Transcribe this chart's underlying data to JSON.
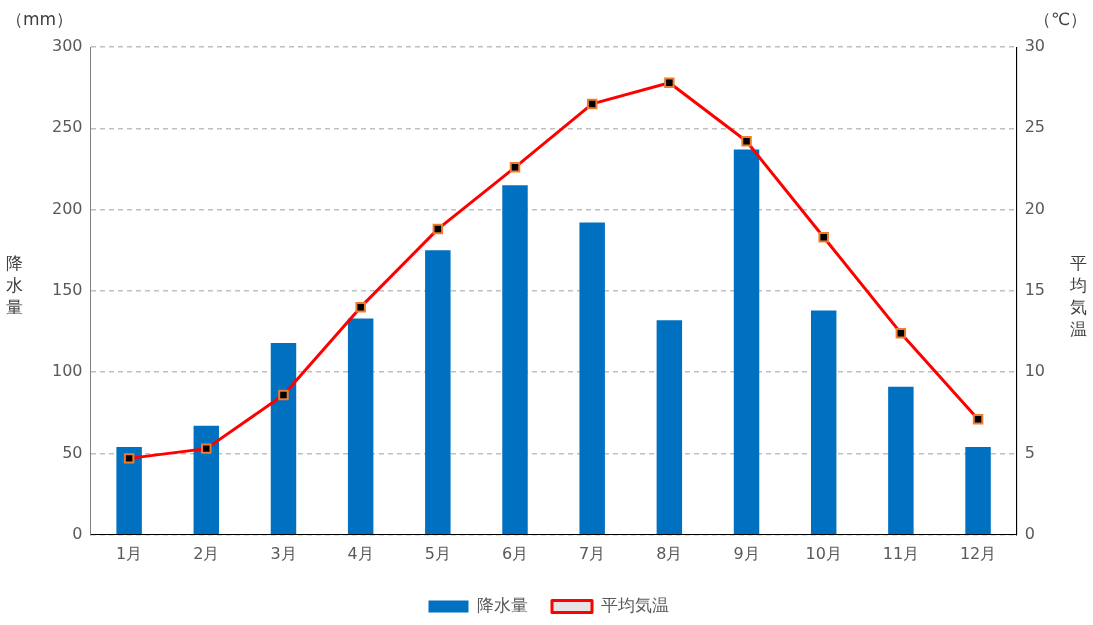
{
  "chart_data": {
    "type": "bar",
    "categories": [
      "1月",
      "2月",
      "3月",
      "4月",
      "5月",
      "6月",
      "7月",
      "8月",
      "9月",
      "10月",
      "11月",
      "12月"
    ],
    "series": [
      {
        "name": "降水量",
        "color": "#0070c0",
        "values": [
          54,
          67,
          118,
          133,
          175,
          215,
          192,
          132,
          237,
          138,
          91,
          54
        ]
      },
      {
        "name": "平均気温",
        "type": "line",
        "axis": "y2",
        "color": "#ff0000",
        "values": [
          4.7,
          5.3,
          8.6,
          14.0,
          18.8,
          22.6,
          26.5,
          27.8,
          24.2,
          18.3,
          12.4,
          7.1
        ]
      }
    ],
    "ylabel": "降水量",
    "y2label": "平均気温",
    "annotations": [
      "（mm）",
      "（℃）"
    ],
    "ylim": [
      0,
      300
    ],
    "yticks": [
      0,
      50,
      100,
      150,
      200,
      250,
      300
    ],
    "y2lim": [
      0,
      30
    ],
    "y2ticks": [
      0,
      5,
      10,
      15,
      20,
      25,
      30
    ],
    "grid": "y",
    "legend": "bottom",
    "marker": "square"
  }
}
